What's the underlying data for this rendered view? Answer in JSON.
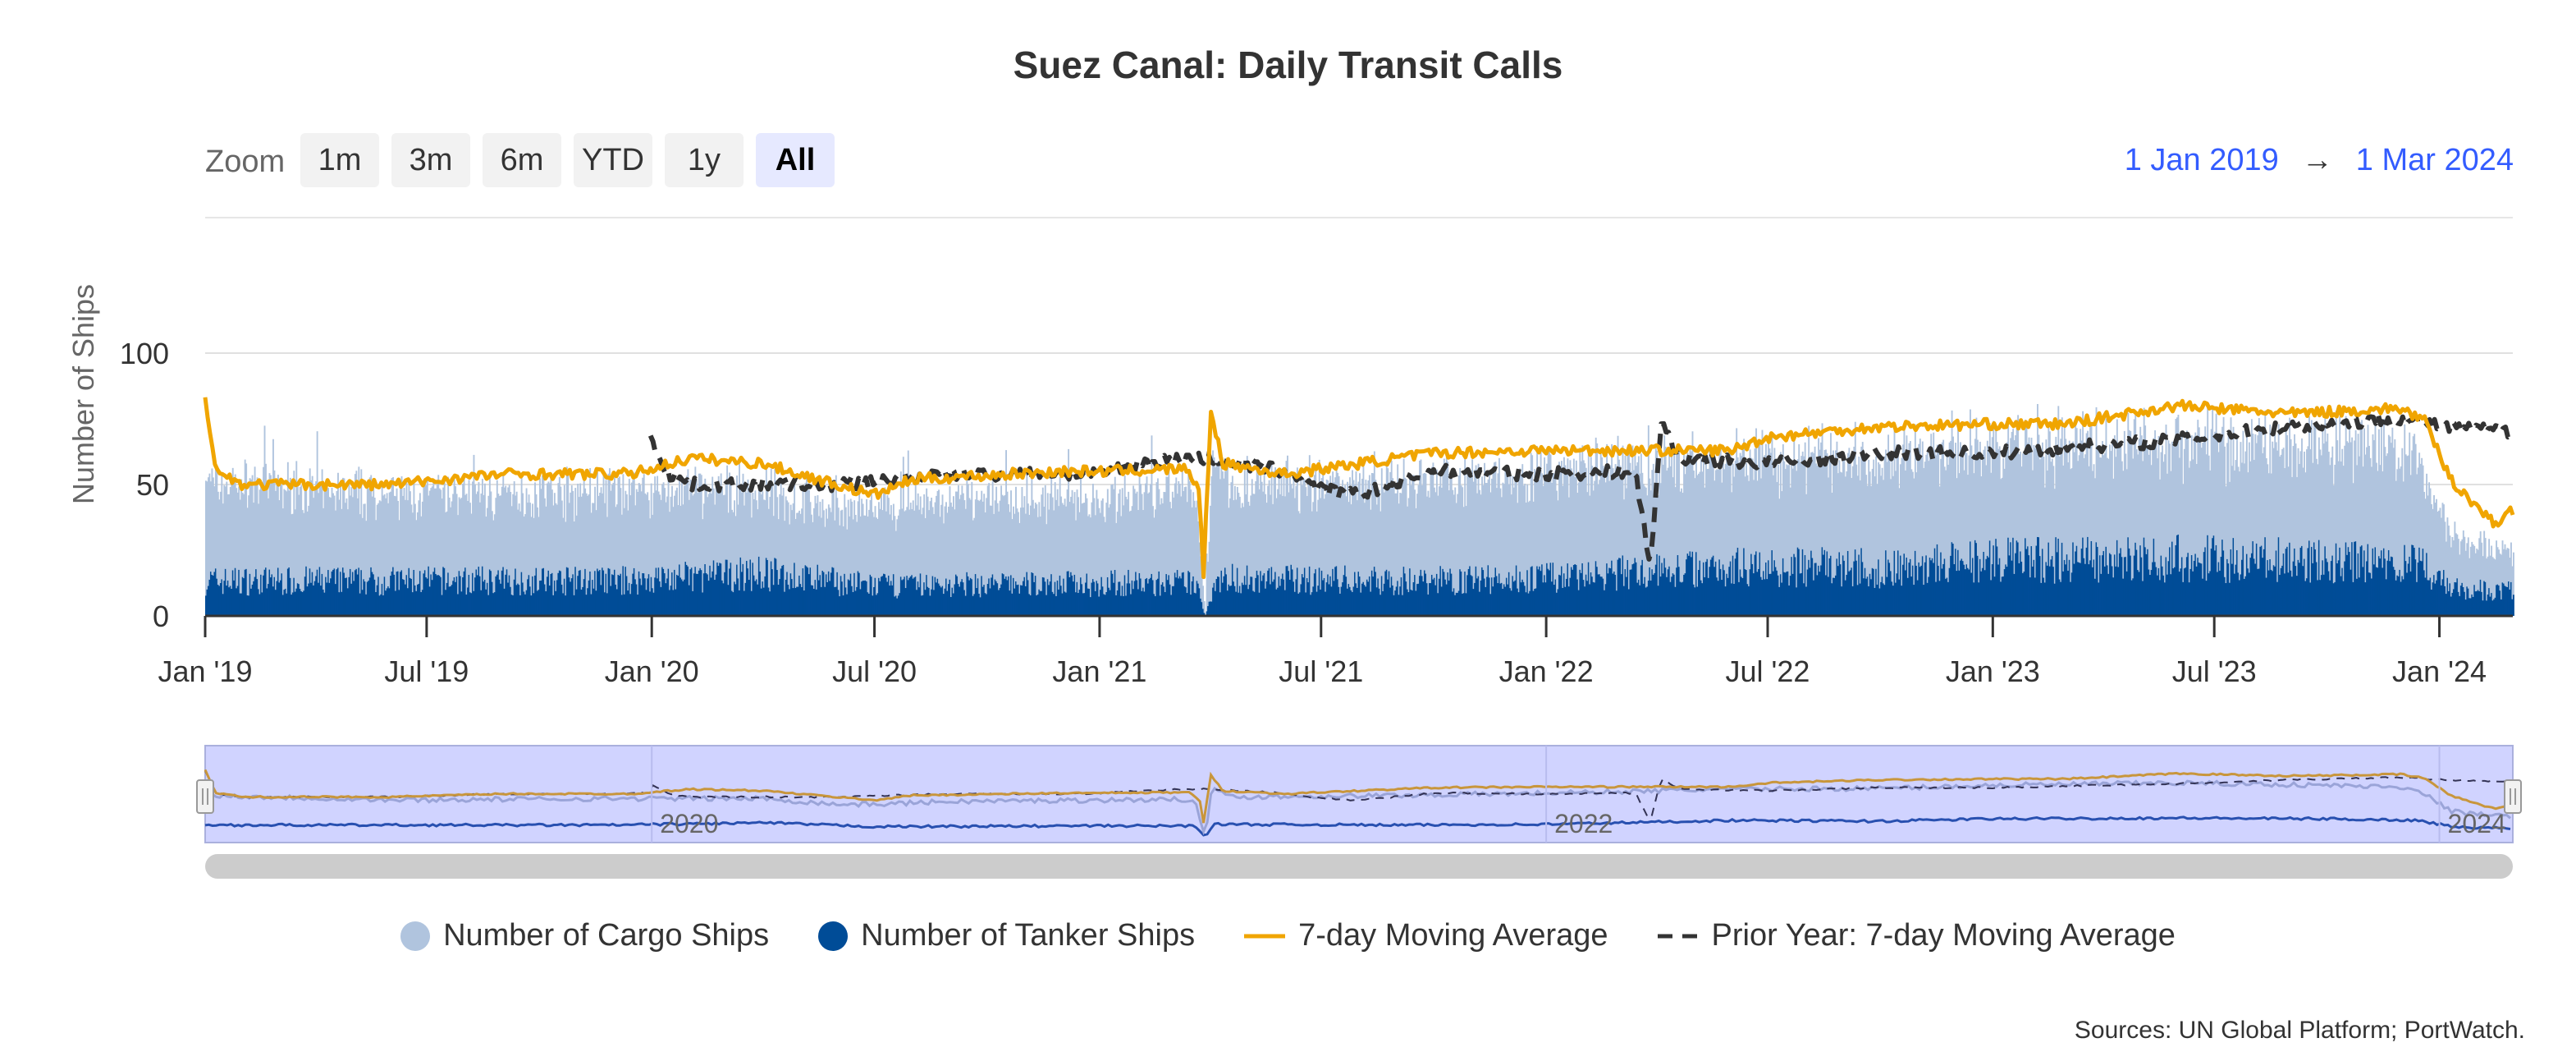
{
  "chart_data": {
    "type": "bar+line",
    "title": "Suez Canal: Daily Transit Calls",
    "ylabel": "Number of Ships",
    "xlabel": "",
    "ylim": [
      -5,
      105
    ],
    "yticks": [
      0,
      50,
      100
    ],
    "xrange": [
      "2019-01-01",
      "2024-03-01"
    ],
    "xticks": [
      {
        "date": "2019-01-01",
        "label": "Jan '19"
      },
      {
        "date": "2019-07-01",
        "label": "Jul '19"
      },
      {
        "date": "2020-01-01",
        "label": "Jan '20"
      },
      {
        "date": "2020-07-01",
        "label": "Jul '20"
      },
      {
        "date": "2021-01-01",
        "label": "Jan '21"
      },
      {
        "date": "2021-07-01",
        "label": "Jul '21"
      },
      {
        "date": "2022-01-01",
        "label": "Jan '22"
      },
      {
        "date": "2022-07-01",
        "label": "Jul '22"
      },
      {
        "date": "2023-01-01",
        "label": "Jan '23"
      },
      {
        "date": "2023-07-01",
        "label": "Jul '23"
      },
      {
        "date": "2024-01-01",
        "label": "Jan '24"
      }
    ],
    "navigator_labels": [
      {
        "date": "2020-01-01",
        "label": "2020"
      },
      {
        "date": "2022-01-01",
        "label": "2022"
      },
      {
        "date": "2024-01-01",
        "label": "2024"
      }
    ],
    "series": [
      {
        "name": "Number of Cargo Ships",
        "type": "stacked-bar",
        "color": "#b0c4de",
        "anchors": [
          [
            "2019-01-01",
            38
          ],
          [
            "2019-06-01",
            32
          ],
          [
            "2019-12-01",
            34
          ],
          [
            "2020-04-01",
            31
          ],
          [
            "2020-06-01",
            27
          ],
          [
            "2020-09-01",
            32
          ],
          [
            "2021-01-01",
            33
          ],
          [
            "2021-03-20",
            34
          ],
          [
            "2021-03-28",
            0
          ],
          [
            "2021-04-03",
            50
          ],
          [
            "2021-04-15",
            35
          ],
          [
            "2021-09-01",
            38
          ],
          [
            "2022-01-01",
            40
          ],
          [
            "2022-06-01",
            40
          ],
          [
            "2022-10-01",
            42
          ],
          [
            "2023-01-01",
            43
          ],
          [
            "2023-06-01",
            45
          ],
          [
            "2023-10-01",
            43
          ],
          [
            "2023-12-10",
            42
          ],
          [
            "2024-01-10",
            20
          ],
          [
            "2024-03-01",
            14
          ]
        ]
      },
      {
        "name": "Number of Tanker Ships",
        "type": "stacked-bar",
        "color": "#004c97",
        "anchors": [
          [
            "2019-01-01",
            14
          ],
          [
            "2019-12-01",
            14
          ],
          [
            "2020-04-01",
            17
          ],
          [
            "2020-07-01",
            12
          ],
          [
            "2021-01-01",
            13
          ],
          [
            "2021-03-20",
            13
          ],
          [
            "2021-03-28",
            0
          ],
          [
            "2021-04-05",
            15
          ],
          [
            "2021-09-01",
            14
          ],
          [
            "2022-01-01",
            15
          ],
          [
            "2022-06-01",
            20
          ],
          [
            "2022-10-01",
            19
          ],
          [
            "2023-01-01",
            22
          ],
          [
            "2023-06-01",
            23
          ],
          [
            "2023-10-01",
            22
          ],
          [
            "2023-12-15",
            20
          ],
          [
            "2024-01-15",
            11
          ],
          [
            "2024-03-01",
            10
          ]
        ]
      },
      {
        "name": "7-day Moving Average",
        "type": "line",
        "color": "#f0a500",
        "anchors": [
          [
            "2019-01-01",
            84
          ],
          [
            "2019-01-10",
            55
          ],
          [
            "2019-02-01",
            50
          ],
          [
            "2019-06-01",
            50
          ],
          [
            "2019-09-01",
            54
          ],
          [
            "2019-12-15",
            54
          ],
          [
            "2020-02-01",
            60
          ],
          [
            "2020-04-01",
            58
          ],
          [
            "2020-05-15",
            52
          ],
          [
            "2020-07-01",
            46
          ],
          [
            "2020-08-01",
            52
          ],
          [
            "2020-12-01",
            55
          ],
          [
            "2021-01-01",
            55
          ],
          [
            "2021-03-15",
            56
          ],
          [
            "2021-03-24",
            45
          ],
          [
            "2021-03-27",
            16
          ],
          [
            "2021-04-02",
            78
          ],
          [
            "2021-04-12",
            58
          ],
          [
            "2021-06-01",
            54
          ],
          [
            "2021-08-01",
            58
          ],
          [
            "2021-10-01",
            62
          ],
          [
            "2022-01-01",
            63
          ],
          [
            "2022-06-01",
            63
          ],
          [
            "2022-07-01",
            68
          ],
          [
            "2022-10-01",
            72
          ],
          [
            "2023-01-01",
            73
          ],
          [
            "2023-03-01",
            73
          ],
          [
            "2023-06-01",
            80
          ],
          [
            "2023-09-01",
            77
          ],
          [
            "2023-12-01",
            79
          ],
          [
            "2023-12-20",
            74
          ],
          [
            "2024-01-10",
            52
          ],
          [
            "2024-02-15",
            35
          ],
          [
            "2024-03-01",
            40
          ]
        ]
      },
      {
        "name": "Prior Year: 7-day Moving Average",
        "type": "dashed-line",
        "color": "#333333",
        "anchors": [
          [
            "2019-12-31",
            67
          ],
          [
            "2020-01-15",
            54
          ],
          [
            "2020-02-01",
            50
          ],
          [
            "2020-06-01",
            50
          ],
          [
            "2020-09-01",
            54
          ],
          [
            "2021-01-01",
            54
          ],
          [
            "2021-02-01",
            58
          ],
          [
            "2021-03-15",
            60
          ],
          [
            "2021-04-01",
            60
          ],
          [
            "2021-06-01",
            55
          ],
          [
            "2021-07-01",
            48
          ],
          [
            "2021-08-01",
            46
          ],
          [
            "2021-10-01",
            55
          ],
          [
            "2022-01-01",
            54
          ],
          [
            "2022-03-15",
            55
          ],
          [
            "2022-03-23",
            30
          ],
          [
            "2022-03-27",
            18
          ],
          [
            "2022-04-05",
            74
          ],
          [
            "2022-04-20",
            60
          ],
          [
            "2022-07-01",
            58
          ],
          [
            "2022-10-01",
            62
          ],
          [
            "2023-01-01",
            62
          ],
          [
            "2023-06-01",
            67
          ],
          [
            "2023-09-01",
            72
          ],
          [
            "2023-12-01",
            75
          ],
          [
            "2024-01-01",
            72
          ],
          [
            "2024-03-01",
            70
          ]
        ]
      }
    ]
  },
  "ui": {
    "zoom_label": "Zoom",
    "zoom_buttons": [
      "1m",
      "3m",
      "6m",
      "YTD",
      "1y",
      "All"
    ],
    "zoom_active": "All",
    "range_from": "1 Jan 2019",
    "range_arrow": "→",
    "range_to": "1 Mar 2024",
    "source": "Sources: UN Global Platform; PortWatch."
  },
  "colors": {
    "cargo": "#b0c4de",
    "tanker": "#004c97",
    "ma": "#f0a500",
    "prior": "#333333",
    "accent": "#335cff",
    "navigator_mask": "#d0d3ff"
  }
}
